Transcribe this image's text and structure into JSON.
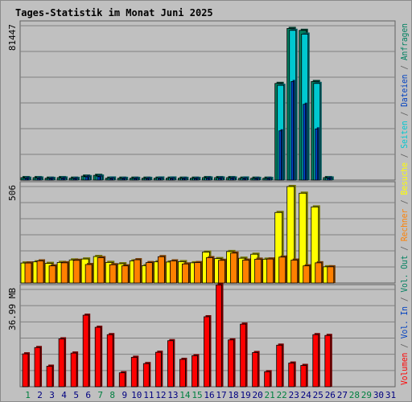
{
  "chart_data": {
    "type": "bar",
    "title": "Tages-Statistik im Monat Juni 2025",
    "categories": [
      "1",
      "2",
      "3",
      "4",
      "5",
      "6",
      "7",
      "8",
      "9",
      "10",
      "11",
      "12",
      "13",
      "14",
      "15",
      "16",
      "17",
      "18",
      "19",
      "20",
      "21",
      "22",
      "23",
      "24",
      "25",
      "26",
      "27",
      "28",
      "29",
      "30",
      "31"
    ],
    "weekend_days": [
      "1",
      "7",
      "8",
      "14",
      "15",
      "21",
      "22",
      "28",
      "29"
    ],
    "panels": [
      {
        "name": "top",
        "ymax_label": "81447",
        "ymax": 81447,
        "series": [
          {
            "name": "Anfragen",
            "color": "#008060",
            "values": [
              1300,
              1300,
              1000,
              1300,
              1000,
              2100,
              2500,
              1000,
              1000,
              1000,
              1000,
              1000,
              1000,
              1000,
              1000,
              1300,
              1300,
              1300,
              1000,
              1000,
              1000,
              51000,
              80000,
              79000,
              52000,
              1300,
              0,
              0,
              0,
              0,
              0
            ]
          },
          {
            "name": "Dateien",
            "color": "#0040c0",
            "values": [
              800,
              800,
              700,
              800,
              700,
              1700,
              1800,
              700,
              700,
              700,
              700,
              700,
              700,
              700,
              700,
              900,
              900,
              900,
              700,
              700,
              700,
              26000,
              52000,
              40000,
              27000,
              900,
              0,
              0,
              0,
              0,
              0
            ]
          },
          {
            "name": "Seiten",
            "color": "#00c8d0",
            "values": [
              1000,
              1100,
              900,
              1100,
              900,
              1800,
              2100,
              1100,
              900,
              900,
              900,
              1100,
              1100,
              900,
              900,
              1100,
              1100,
              1100,
              1100,
              900,
              900,
              50000,
              79000,
              77000,
              51000,
              1100,
              0,
              0,
              0,
              0,
              0
            ]
          }
        ]
      },
      {
        "name": "middle",
        "ymax_label": "506",
        "ymax": 506,
        "series": [
          {
            "name": "Besuche",
            "color": "#ffff00",
            "values": [
              105,
              111,
              103,
              108,
              121,
              126,
              139,
              108,
              101,
              116,
              91,
              111,
              110,
              112,
              106,
              162,
              128,
              165,
              130,
              151,
              125,
              370,
              506,
              471,
              399,
              85,
              0,
              0,
              0,
              0,
              0
            ]
          },
          {
            "name": "Rechner",
            "color": "#ff8000",
            "values": [
              105,
              116,
              90,
              106,
              119,
              97,
              133,
              96,
              90,
              122,
              107,
              138,
              116,
              100,
              107,
              133,
              119,
              157,
              120,
              125,
              126,
              136,
              120,
              90,
              106,
              85,
              0,
              0,
              0,
              0,
              0
            ]
          }
        ]
      },
      {
        "name": "bottom",
        "ymax_label": "36.99 MB",
        "ymax": 36.99,
        "series": [
          {
            "name": "Vol. Out",
            "color": "#00a000",
            "values": [
              0,
              0,
              0,
              0,
              0,
              0,
              0,
              0,
              0,
              0,
              0,
              0,
              0,
              0,
              0,
              0,
              0,
              0,
              0,
              0,
              0,
              0,
              0,
              0,
              0,
              0,
              0,
              0,
              0,
              0,
              0
            ]
          },
          {
            "name": "Vol. In",
            "color": "#0040c0",
            "values": [
              0,
              0,
              0,
              0,
              0,
              0,
              0,
              0,
              0,
              0,
              0,
              0,
              0,
              0,
              0,
              0,
              0,
              0,
              0,
              0,
              0,
              0,
              0,
              0,
              0,
              0,
              0,
              0,
              0,
              0,
              0
            ]
          },
          {
            "name": "Volumen",
            "color": "#ff0000",
            "values": [
              12.5,
              14.9,
              7.8,
              18.2,
              12.8,
              27.2,
              22.6,
              19.8,
              5.3,
              11.2,
              8.8,
              13.1,
              17.5,
              10.4,
              11.8,
              26.6,
              38.7,
              17.8,
              23.8,
              13.0,
              5.7,
              15.8,
              9.0,
              8.1,
              19.8,
              19.5,
              0,
              0,
              0,
              0,
              0
            ]
          }
        ]
      }
    ],
    "legend_right": [
      {
        "text": "Volumen",
        "color": "#ff0000"
      },
      {
        "text": " / ",
        "color": "#606060"
      },
      {
        "text": "Vol. In",
        "color": "#0040c0"
      },
      {
        "text": " / ",
        "color": "#606060"
      },
      {
        "text": "Vol. Out",
        "color": "#008060"
      },
      {
        "text": " / ",
        "color": "#606060"
      },
      {
        "text": "Rechner",
        "color": "#ff8000"
      },
      {
        "text": " / ",
        "color": "#606060"
      },
      {
        "text": "Besuche",
        "color": "#ffff00"
      },
      {
        "text": " / ",
        "color": "#606060"
      },
      {
        "text": "Seiten",
        "color": "#00c8d0"
      },
      {
        "text": " / ",
        "color": "#606060"
      },
      {
        "text": "Dateien",
        "color": "#0040c0"
      },
      {
        "text": " / ",
        "color": "#606060"
      },
      {
        "text": "Anfragen",
        "color": "#008060"
      }
    ],
    "colors": {
      "background": "#c0c0c0",
      "title": "#0000ff",
      "weekday_label": "#000080",
      "weekend_label": "#008040",
      "gridline": "#808080"
    },
    "grid": true
  }
}
